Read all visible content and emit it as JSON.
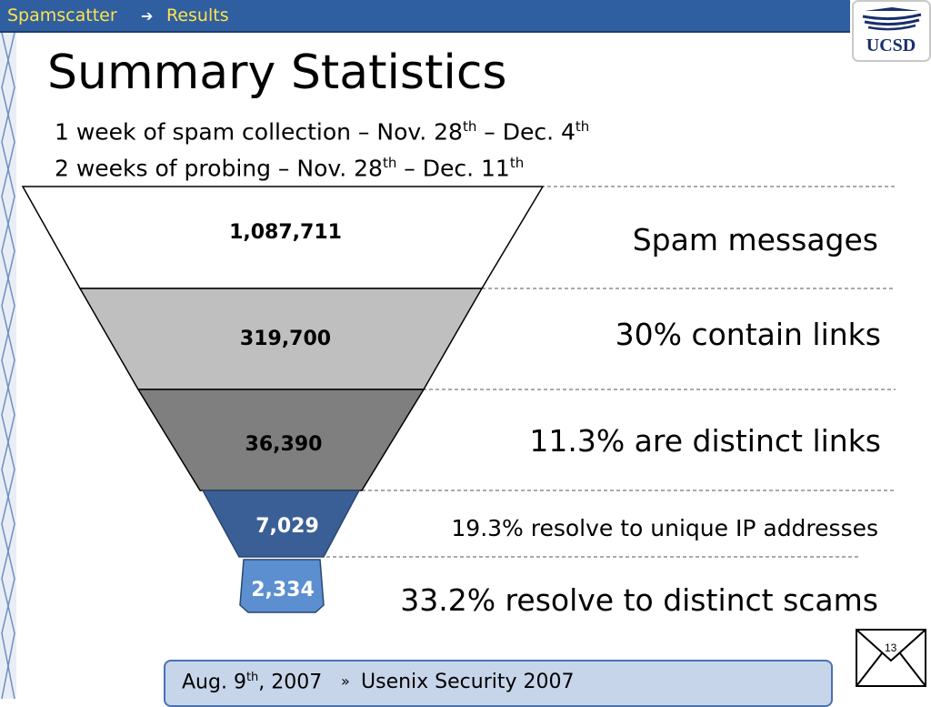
{
  "breadcrumb": {
    "section": "Spamscatter",
    "page": "Results"
  },
  "logo": {
    "text": "UCSD"
  },
  "title": "Summary Statistics",
  "subtitle": {
    "line1": {
      "text": "1 week of spam collection – Nov. 28",
      "sup1": "th",
      "mid": " – Dec. 4",
      "sup2": "th"
    },
    "line2": {
      "text": "2 weeks of probing – Nov. 28",
      "sup1": "th",
      "mid": " – Dec. 11",
      "sup2": "th"
    }
  },
  "funnel": {
    "stages": [
      {
        "value": "1,087,711",
        "label": "Spam messages",
        "fill": "#ffffff",
        "text_color": "#000000"
      },
      {
        "value": "319,700",
        "label": "30% contain links",
        "fill": "#bfbfbf",
        "text_color": "#000000"
      },
      {
        "value": "36,390",
        "label": "11.3% are distinct links",
        "fill": "#7f7f7f",
        "text_color": "#000000"
      },
      {
        "value": "7,029",
        "label": "19.3% resolve to unique IP addresses",
        "fill": "#3a5f96",
        "text_color": "#ffffff"
      },
      {
        "value": "2,334",
        "label": "33.2% resolve to distinct scams",
        "fill": "#5b8fd0",
        "text_color": "#ffffff"
      }
    ]
  },
  "footer": {
    "date": "Aug. 9",
    "date_sup": "th",
    "year": ", 2007",
    "venue": "Usenix Security 2007"
  },
  "page_number": "13",
  "colors": {
    "topbar": "#2f5fa0",
    "breadcrumb_text": "#ffe34f",
    "footer_bg": "#c7d5ea"
  }
}
